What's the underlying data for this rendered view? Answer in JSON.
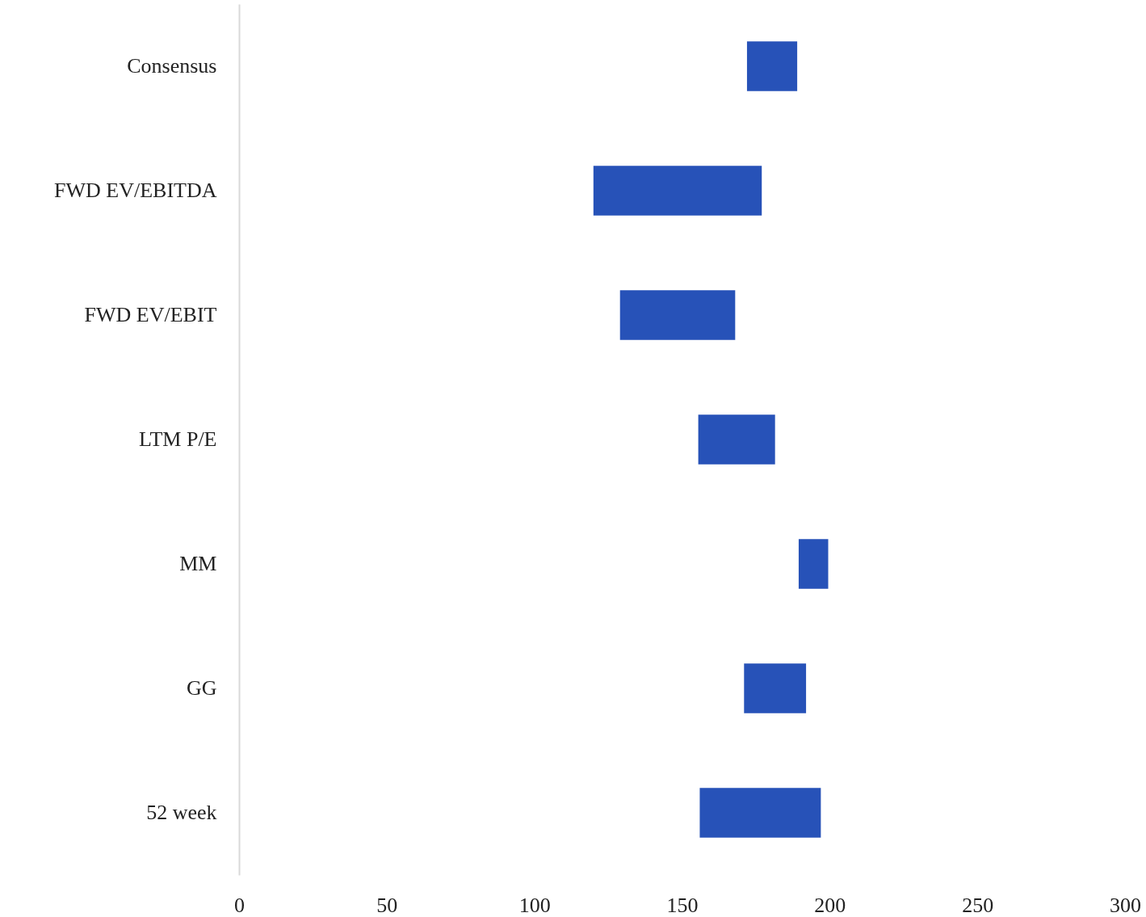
{
  "chart_data": {
    "type": "bar",
    "orientation": "horizontal",
    "categories": [
      "Consensus",
      "FWD EV/EBITDA",
      "FWD EV/EBIT",
      "LTM P/E",
      "MM",
      "GG",
      "52 week"
    ],
    "base": [
      172,
      120,
      129,
      155.5,
      189.5,
      171,
      156
    ],
    "values": [
      17,
      57,
      39,
      26,
      10,
      21,
      41
    ],
    "color": "#2752b8",
    "xlim": [
      0,
      300
    ],
    "xticks": [
      0,
      50,
      100,
      150,
      200,
      250,
      300
    ],
    "grid": false
  }
}
